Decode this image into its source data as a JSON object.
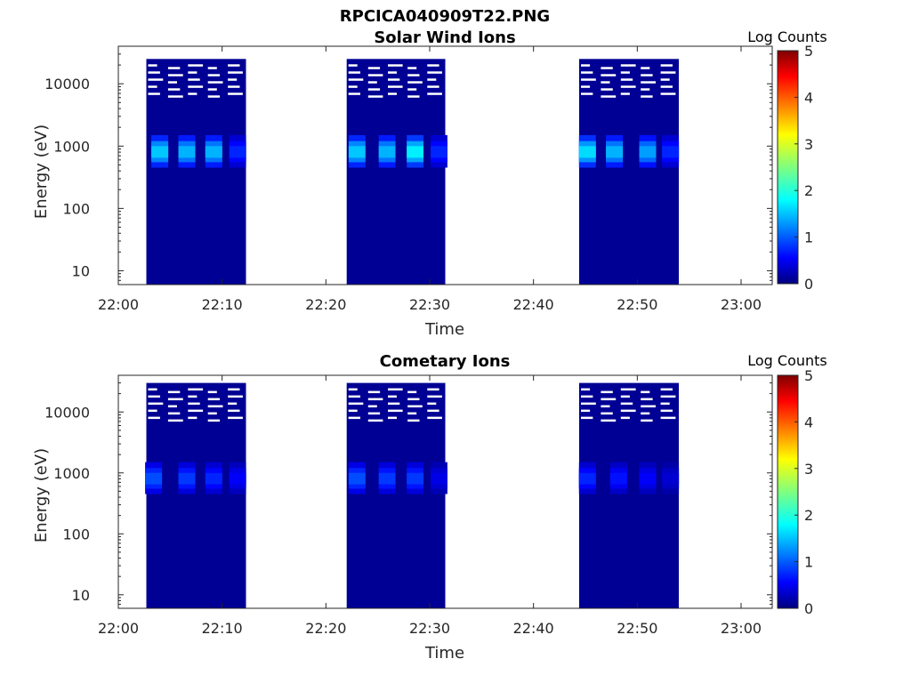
{
  "figure_title": "RPCICA040909T22.PNG",
  "colorbar": {
    "label": "Log Counts",
    "min": 0,
    "max": 5,
    "ticks": [
      "0",
      "1",
      "2",
      "3",
      "4",
      "5"
    ],
    "colormap": "jet",
    "colors": {
      "dark_navy": "#00007f",
      "blue": "#0000ff",
      "cyan": "#00ffff",
      "yellow": "#ffff00",
      "red": "#ff0000",
      "dark_red": "#7f0000"
    }
  },
  "chart_data": [
    {
      "type": "heatmap",
      "title": "Solar Wind Ions",
      "xlabel": "Time",
      "ylabel": "Energy (eV)",
      "xlim": [
        "22:00",
        "23:03"
      ],
      "ylim": [
        6,
        40000
      ],
      "yscale": "log",
      "xticks": [
        "22:00",
        "22:10",
        "22:20",
        "22:30",
        "22:40",
        "22:50",
        "23:00"
      ],
      "yticks": [
        "10",
        "100",
        "1000",
        "10000"
      ],
      "grid": false,
      "measurement_blocks": [
        {
          "start": "22:02.7",
          "end": "22:12.3",
          "top_eV": 25000,
          "base_value": 0.1,
          "peaks": [
            {
              "center": "22:04.0",
              "value": 1.6
            },
            {
              "center": "22:06.6",
              "value": 1.5
            },
            {
              "center": "22:09.2",
              "value": 1.5
            },
            {
              "center": "22:11.5",
              "value": 0.8
            }
          ]
        },
        {
          "start": "22:22.0",
          "end": "22:31.5",
          "top_eV": 25000,
          "base_value": 0.1,
          "peaks": [
            {
              "center": "22:23.0",
              "value": 1.6
            },
            {
              "center": "22:25.9",
              "value": 1.5
            },
            {
              "center": "22:28.6",
              "value": 1.8
            },
            {
              "center": "22:30.9",
              "value": 0.8
            }
          ]
        },
        {
          "start": "22:44.4",
          "end": "22:54.0",
          "top_eV": 25000,
          "base_value": 0.1,
          "peaks": [
            {
              "center": "22:45.2",
              "value": 1.7
            },
            {
              "center": "22:47.8",
              "value": 1.5
            },
            {
              "center": "22:51.0",
              "value": 1.4
            },
            {
              "center": "22:53.2",
              "value": 0.8
            }
          ]
        }
      ]
    },
    {
      "type": "heatmap",
      "title": "Cometary Ions",
      "xlabel": "Time",
      "ylabel": "Energy (eV)",
      "xlim": [
        "22:00",
        "23:03"
      ],
      "ylim": [
        6,
        40000
      ],
      "yscale": "log",
      "xticks": [
        "22:00",
        "22:10",
        "22:20",
        "22:30",
        "22:40",
        "22:50",
        "23:00"
      ],
      "yticks": [
        "10",
        "100",
        "1000",
        "10000"
      ],
      "grid": false,
      "measurement_blocks": [
        {
          "start": "22:02.7",
          "end": "22:12.3",
          "top_eV": 30000,
          "base_value": 0.1,
          "peaks": [
            {
              "center": "22:03.4",
              "value": 1.0
            },
            {
              "center": "22:06.6",
              "value": 0.9
            },
            {
              "center": "22:09.2",
              "value": 0.8
            },
            {
              "center": "22:11.5",
              "value": 0.6
            }
          ]
        },
        {
          "start": "22:22.0",
          "end": "22:31.5",
          "top_eV": 30000,
          "base_value": 0.1,
          "peaks": [
            {
              "center": "22:23.0",
              "value": 1.0
            },
            {
              "center": "22:25.9",
              "value": 0.9
            },
            {
              "center": "22:28.6",
              "value": 0.9
            },
            {
              "center": "22:30.9",
              "value": 0.5
            }
          ]
        },
        {
          "start": "22:44.4",
          "end": "22:54.0",
          "top_eV": 30000,
          "base_value": 0.1,
          "peaks": [
            {
              "center": "22:45.2",
              "value": 0.8
            },
            {
              "center": "22:48.2",
              "value": 0.7
            },
            {
              "center": "22:51.0",
              "value": 0.6
            },
            {
              "center": "22:53.2",
              "value": 0.4
            }
          ]
        }
      ]
    }
  ]
}
